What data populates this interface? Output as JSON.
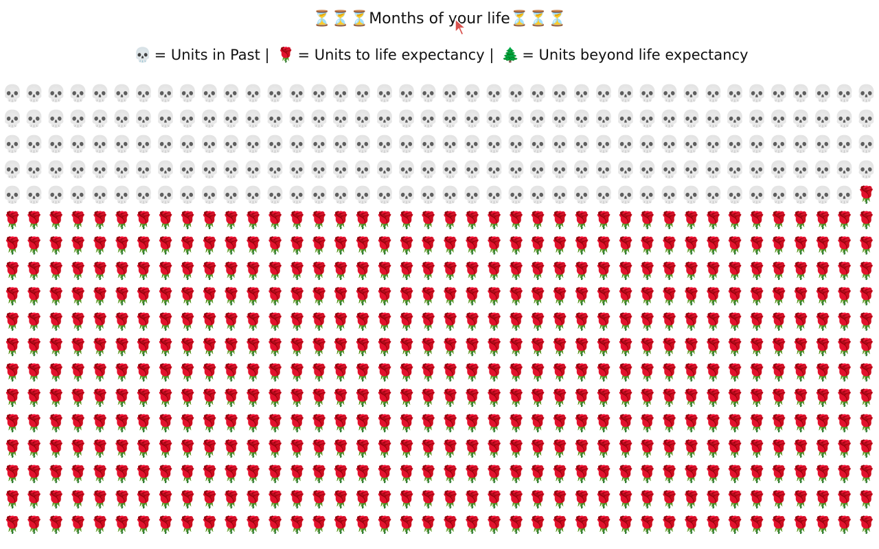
{
  "header": {
    "title_prefix": "⏳⏳⏳",
    "title": "Months of your life",
    "title_suffix": "⏳⏳⏳"
  },
  "legend": {
    "past_icon": "💀",
    "past_label": "= Units in Past |",
    "remaining_icon": "🌹",
    "remaining_label": "= Units to life expectancy |",
    "beyond_icon": "🌲",
    "beyond_label": "= Units beyond life expectancy"
  },
  "grid": {
    "columns": 40,
    "past_units": 199,
    "remaining_units": 521,
    "beyond_units": 0
  },
  "icons": {
    "cursor": "arrow-cursor-icon"
  }
}
